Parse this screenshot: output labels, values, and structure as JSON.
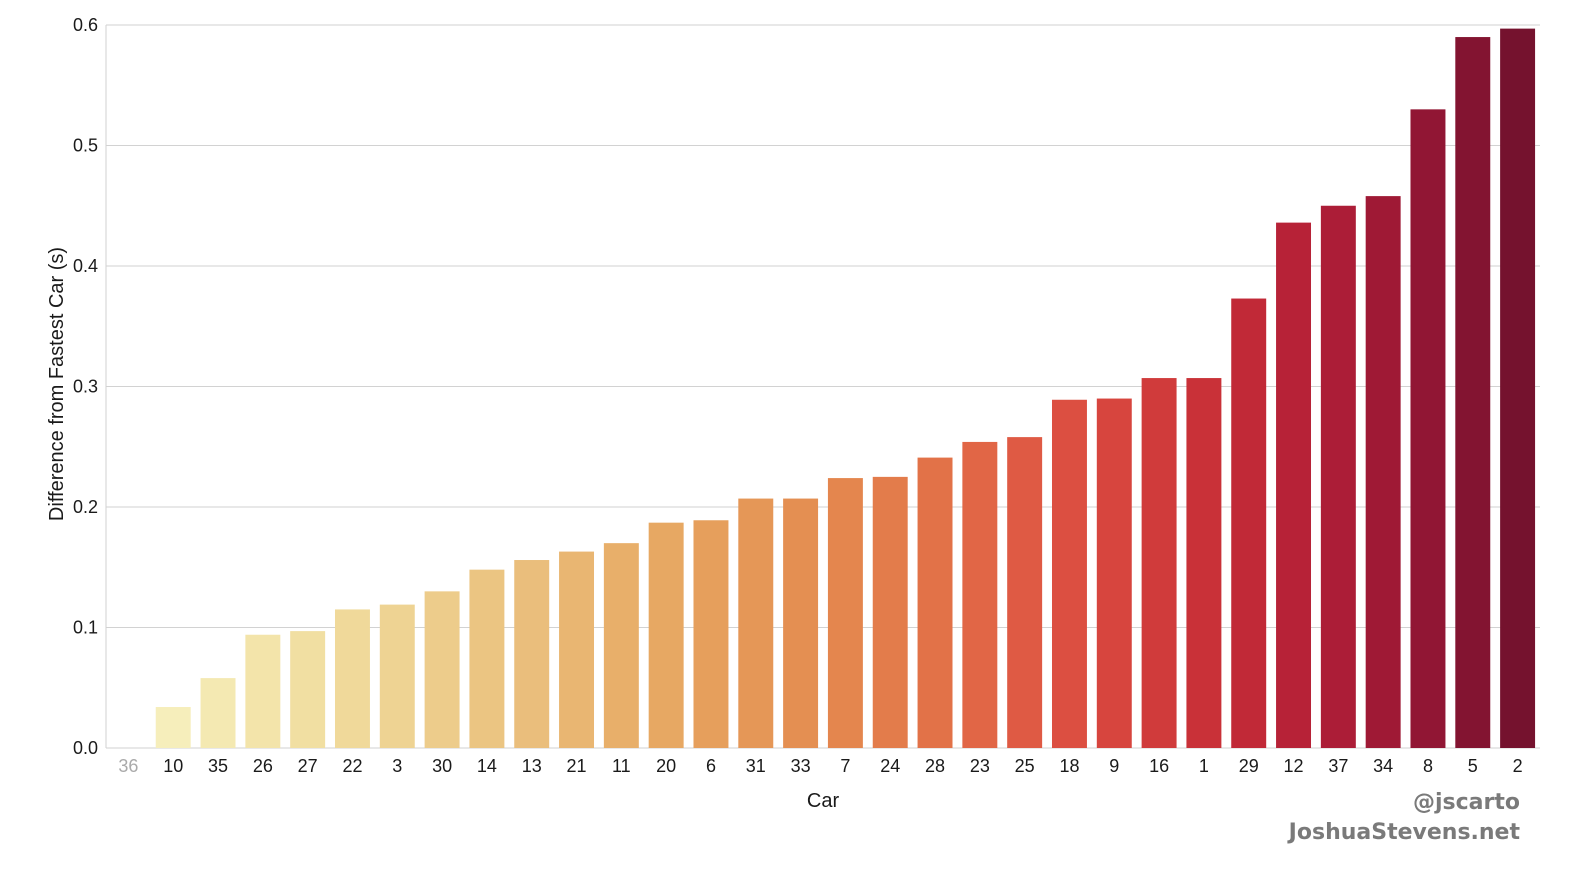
{
  "chart_data": {
    "type": "bar",
    "title": "",
    "xlabel": "Car",
    "ylabel": "Difference from Fastest Car (s)",
    "ylim": [
      0,
      0.6
    ],
    "yticks": [
      "0.0",
      "0.1",
      "0.2",
      "0.3",
      "0.4",
      "0.5",
      "0.6"
    ],
    "grid": "horizontal",
    "categories": [
      "36",
      "10",
      "35",
      "26",
      "27",
      "22",
      "3",
      "30",
      "14",
      "13",
      "21",
      "11",
      "20",
      "6",
      "31",
      "33",
      "7",
      "24",
      "28",
      "23",
      "25",
      "18",
      "9",
      "16",
      "1",
      "29",
      "12",
      "37",
      "34",
      "8",
      "5",
      "2"
    ],
    "values": [
      0.0,
      0.034,
      0.058,
      0.094,
      0.097,
      0.115,
      0.119,
      0.13,
      0.148,
      0.156,
      0.163,
      0.17,
      0.187,
      0.189,
      0.207,
      0.207,
      0.224,
      0.225,
      0.241,
      0.254,
      0.258,
      0.289,
      0.29,
      0.307,
      0.307,
      0.373,
      0.436,
      0.45,
      0.458,
      0.53,
      0.59,
      0.597
    ],
    "colors": [
      "#f7f0c0",
      "#f6eebb",
      "#f4e9b2",
      "#f3e4aa",
      "#f1dfa2",
      "#f0d99a",
      "#eed393",
      "#edcc8b",
      "#ebc582",
      "#eabe7c",
      "#e9b672",
      "#e8af6a",
      "#e7a863",
      "#e69f5c",
      "#e59757",
      "#e48f52",
      "#e4864e",
      "#e37c4b",
      "#e27248",
      "#e16646",
      "#df5a44",
      "#dc4f41",
      "#d7453e",
      "#d03b3b",
      "#c93138",
      "#c12937",
      "#b72237",
      "#ac1d37",
      "#9f1935",
      "#911634",
      "#831431",
      "#75122e"
    ],
    "muted_category_color": "#aaaaaa"
  },
  "credit": {
    "handle": "@jscarto",
    "site": "JoshuaStevens.net"
  }
}
